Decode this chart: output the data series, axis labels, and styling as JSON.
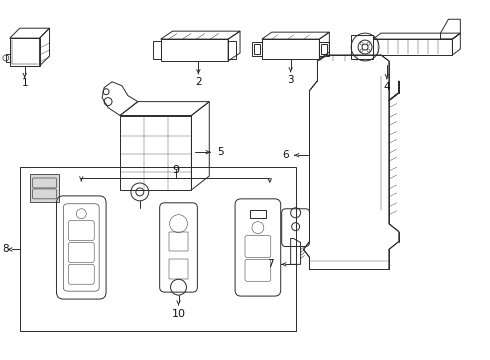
{
  "background_color": "#ffffff",
  "line_color": "#2a2a2a",
  "fig_width": 4.9,
  "fig_height": 3.6,
  "dpi": 100,
  "lw": 0.7
}
